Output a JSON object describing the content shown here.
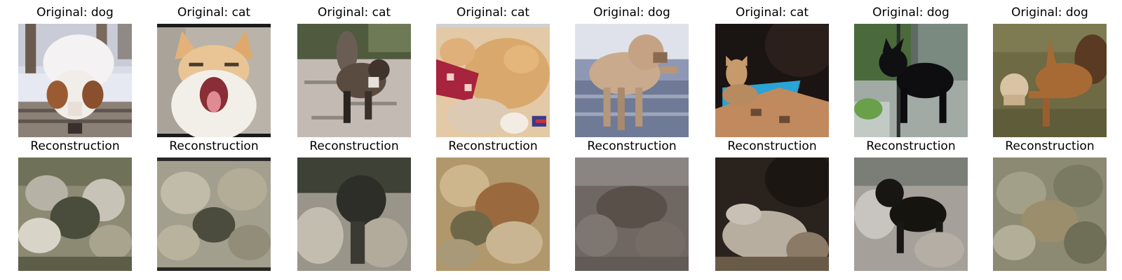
{
  "figure": {
    "rows": [
      {
        "name": "original",
        "panels": [
          {
            "title": "Original: dog",
            "subject": "dog-in-snow-image"
          },
          {
            "title": "Original: cat",
            "subject": "cat-yawning-image"
          },
          {
            "title": "Original: cat",
            "subject": "cat-walking-image"
          },
          {
            "title": "Original: cat",
            "subject": "cat-on-blanket-image"
          },
          {
            "title": "Original: dog",
            "subject": "dog-on-beach-image"
          },
          {
            "title": "Original: cat",
            "subject": "cat-on-rock-image"
          },
          {
            "title": "Original: dog",
            "subject": "black-dog-image"
          },
          {
            "title": "Original: dog",
            "subject": "dogs-on-grass-image"
          }
        ]
      },
      {
        "name": "reconstruction",
        "panels": [
          {
            "title": "Reconstruction",
            "subject": "reconstruction-image"
          },
          {
            "title": "Reconstruction",
            "subject": "reconstruction-image"
          },
          {
            "title": "Reconstruction",
            "subject": "reconstruction-image"
          },
          {
            "title": "Reconstruction",
            "subject": "reconstruction-image"
          },
          {
            "title": "Reconstruction",
            "subject": "reconstruction-image"
          },
          {
            "title": "Reconstruction",
            "subject": "reconstruction-image"
          },
          {
            "title": "Reconstruction",
            "subject": "reconstruction-image"
          },
          {
            "title": "Reconstruction",
            "subject": "reconstruction-image"
          }
        ]
      }
    ]
  }
}
